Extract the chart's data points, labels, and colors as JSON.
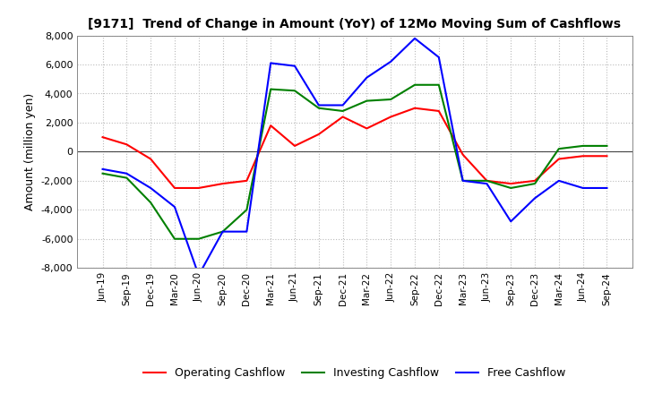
{
  "title": "[9171]  Trend of Change in Amount (YoY) of 12Mo Moving Sum of Cashflows",
  "ylabel": "Amount (million yen)",
  "ylim": [
    -8000,
    8000
  ],
  "yticks": [
    -8000,
    -6000,
    -4000,
    -2000,
    0,
    2000,
    4000,
    6000,
    8000
  ],
  "background_color": "#ffffff",
  "grid_color": "#bbbbbb",
  "x_labels": [
    "Jun-19",
    "Sep-19",
    "Dec-19",
    "Mar-20",
    "Jun-20",
    "Sep-20",
    "Dec-20",
    "Mar-21",
    "Jun-21",
    "Sep-21",
    "Dec-21",
    "Mar-22",
    "Jun-22",
    "Sep-22",
    "Dec-22",
    "Mar-23",
    "Jun-23",
    "Sep-23",
    "Dec-23",
    "Mar-24",
    "Jun-24",
    "Sep-24"
  ],
  "operating_cashflow": [
    1000,
    500,
    -500,
    -2500,
    -2500,
    -2200,
    -2000,
    1800,
    400,
    1200,
    2400,
    1600,
    2400,
    3000,
    2800,
    -200,
    -2000,
    -2200,
    -2000,
    -500,
    -300,
    -300
  ],
  "investing_cashflow": [
    -1500,
    -1800,
    -3500,
    -6000,
    -6000,
    -5500,
    -4000,
    4300,
    4200,
    3000,
    2800,
    3500,
    3600,
    4600,
    4600,
    -2000,
    -2000,
    -2500,
    -2200,
    200,
    400,
    400
  ],
  "free_cashflow": [
    -1200,
    -1500,
    -2500,
    -3800,
    -8500,
    -5500,
    -5500,
    6100,
    5900,
    3200,
    3200,
    5100,
    6200,
    7800,
    6500,
    -2000,
    -2200,
    -4800,
    -3200,
    -2000,
    -2500,
    -2500
  ],
  "line_colors": {
    "operating": "#ff0000",
    "investing": "#008000",
    "free": "#0000ff"
  },
  "line_width": 1.5,
  "legend_labels": [
    "Operating Cashflow",
    "Investing Cashflow",
    "Free Cashflow"
  ]
}
